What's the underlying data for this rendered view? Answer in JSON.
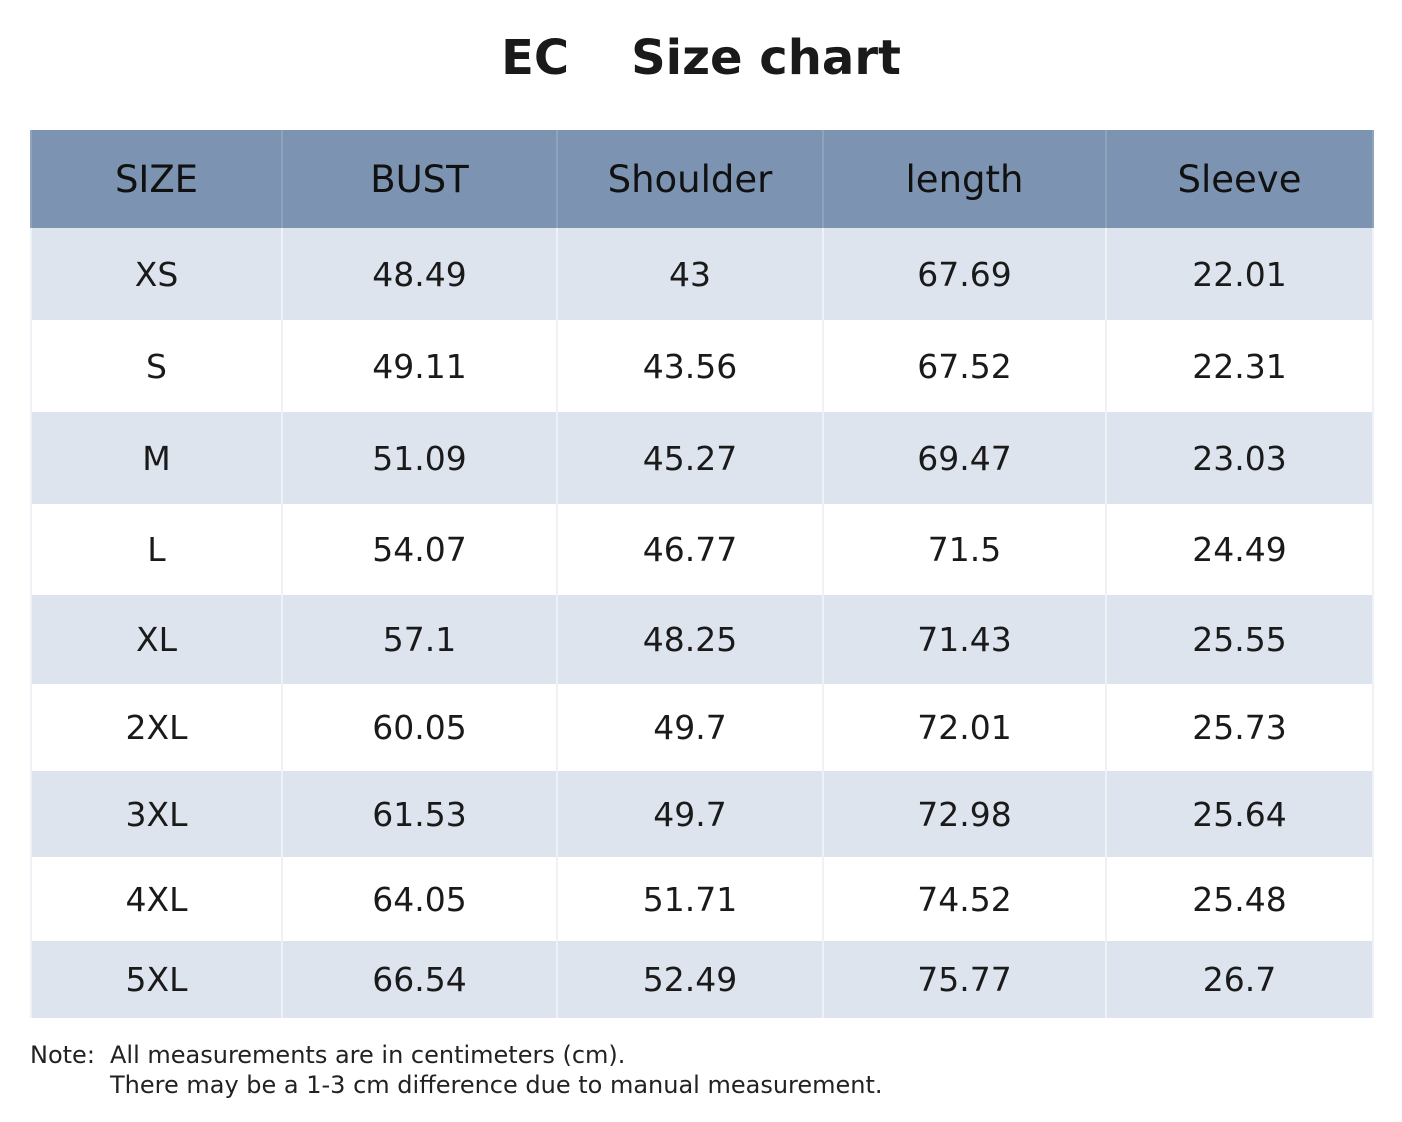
{
  "header": {
    "title_left": "EC",
    "title_right": "Size chart"
  },
  "table": {
    "columns": [
      "SIZE",
      "BUST",
      "Shoulder",
      "length",
      "Sleeve"
    ],
    "rows": [
      [
        "XS",
        "48.49",
        "43",
        "67.69",
        "22.01"
      ],
      [
        "S",
        "49.11",
        "43.56",
        "67.52",
        "22.31"
      ],
      [
        "M",
        "51.09",
        "45.27",
        "69.47",
        "23.03"
      ],
      [
        "L",
        "54.07",
        "46.77",
        "71.5",
        "24.49"
      ],
      [
        "XL",
        "57.1",
        "48.25",
        "71.43",
        "25.55"
      ],
      [
        "2XL",
        "60.05",
        "49.7",
        "72.01",
        "25.73"
      ],
      [
        "3XL",
        "61.53",
        "49.7",
        "72.98",
        "25.64"
      ],
      [
        "4XL",
        "64.05",
        "51.71",
        "74.52",
        "25.48"
      ],
      [
        "5XL",
        "66.54",
        "52.49",
        "75.77",
        "26.7"
      ]
    ]
  },
  "note": {
    "label": "Note:",
    "lines": [
      "All measurements are in centimeters (cm).",
      "There may be a 1-3 cm difference due to manual measurement."
    ]
  }
}
